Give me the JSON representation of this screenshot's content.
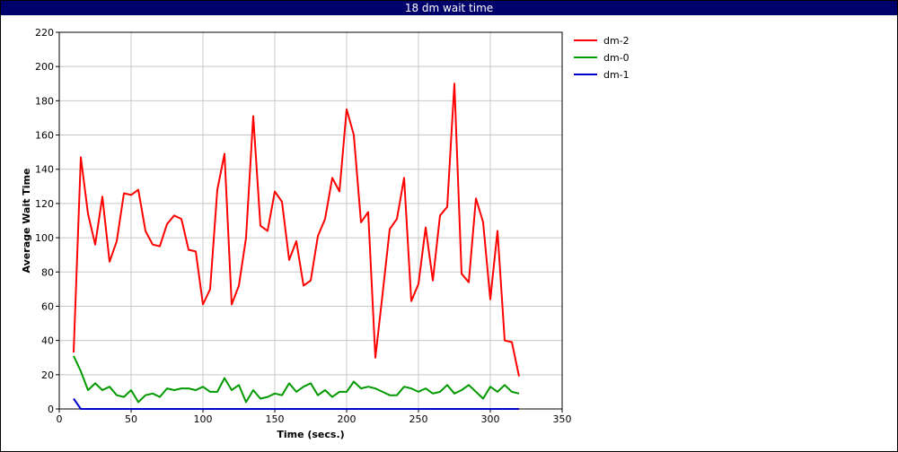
{
  "window": {
    "title": "18 dm wait time"
  },
  "chart_data": {
    "type": "line",
    "title": "18 dm wait time",
    "xlabel": "Time (secs.)",
    "ylabel": "Average Wait Time",
    "xlim": [
      0,
      350
    ],
    "ylim": [
      0,
      220
    ],
    "xticks": [
      0,
      50,
      100,
      150,
      200,
      250,
      300,
      350
    ],
    "yticks": [
      0,
      20,
      40,
      60,
      80,
      100,
      120,
      140,
      160,
      180,
      200,
      220
    ],
    "grid": true,
    "legend_position": "top-right",
    "series": [
      {
        "name": "dm-2",
        "color": "#ff0000",
        "points": [
          [
            10,
            33
          ],
          [
            15,
            147
          ],
          [
            20,
            114
          ],
          [
            25,
            96
          ],
          [
            30,
            124
          ],
          [
            35,
            86
          ],
          [
            40,
            98
          ],
          [
            45,
            126
          ],
          [
            50,
            125
          ],
          [
            55,
            128
          ],
          [
            60,
            104
          ],
          [
            65,
            96
          ],
          [
            70,
            95
          ],
          [
            75,
            108
          ],
          [
            80,
            113
          ],
          [
            85,
            111
          ],
          [
            90,
            93
          ],
          [
            95,
            92
          ],
          [
            100,
            61
          ],
          [
            105,
            70
          ],
          [
            110,
            128
          ],
          [
            115,
            149
          ],
          [
            120,
            61
          ],
          [
            125,
            72
          ],
          [
            130,
            100
          ],
          [
            135,
            171
          ],
          [
            140,
            107
          ],
          [
            145,
            104
          ],
          [
            150,
            127
          ],
          [
            155,
            121
          ],
          [
            160,
            87
          ],
          [
            165,
            98
          ],
          [
            170,
            72
          ],
          [
            175,
            75
          ],
          [
            180,
            101
          ],
          [
            185,
            111
          ],
          [
            190,
            135
          ],
          [
            195,
            127
          ],
          [
            200,
            175
          ],
          [
            205,
            160
          ],
          [
            210,
            109
          ],
          [
            215,
            115
          ],
          [
            220,
            30
          ],
          [
            225,
            67
          ],
          [
            230,
            105
          ],
          [
            235,
            111
          ],
          [
            240,
            135
          ],
          [
            245,
            63
          ],
          [
            250,
            73
          ],
          [
            255,
            106
          ],
          [
            260,
            75
          ],
          [
            265,
            113
          ],
          [
            270,
            118
          ],
          [
            275,
            190
          ],
          [
            280,
            79
          ],
          [
            285,
            74
          ],
          [
            290,
            123
          ],
          [
            295,
            109
          ],
          [
            300,
            64
          ],
          [
            305,
            104
          ],
          [
            310,
            40
          ],
          [
            315,
            39
          ],
          [
            320,
            19
          ]
        ]
      },
      {
        "name": "dm-0",
        "color": "#009900",
        "points": [
          [
            10,
            31
          ],
          [
            15,
            22
          ],
          [
            20,
            11
          ],
          [
            25,
            15
          ],
          [
            30,
            11
          ],
          [
            35,
            13
          ],
          [
            40,
            8
          ],
          [
            45,
            7
          ],
          [
            50,
            11
          ],
          [
            55,
            4
          ],
          [
            60,
            8
          ],
          [
            65,
            9
          ],
          [
            70,
            7
          ],
          [
            75,
            12
          ],
          [
            80,
            11
          ],
          [
            85,
            12
          ],
          [
            90,
            12
          ],
          [
            95,
            11
          ],
          [
            100,
            13
          ],
          [
            105,
            10
          ],
          [
            110,
            10
          ],
          [
            115,
            18
          ],
          [
            120,
            11
          ],
          [
            125,
            14
          ],
          [
            130,
            4
          ],
          [
            135,
            11
          ],
          [
            140,
            6
          ],
          [
            145,
            7
          ],
          [
            150,
            9
          ],
          [
            155,
            8
          ],
          [
            160,
            15
          ],
          [
            165,
            10
          ],
          [
            170,
            13
          ],
          [
            175,
            15
          ],
          [
            180,
            8
          ],
          [
            185,
            11
          ],
          [
            190,
            7
          ],
          [
            195,
            10
          ],
          [
            200,
            10
          ],
          [
            205,
            16
          ],
          [
            210,
            12
          ],
          [
            215,
            13
          ],
          [
            220,
            12
          ],
          [
            225,
            10
          ],
          [
            230,
            8
          ],
          [
            235,
            8
          ],
          [
            240,
            13
          ],
          [
            245,
            12
          ],
          [
            250,
            10
          ],
          [
            255,
            12
          ],
          [
            260,
            9
          ],
          [
            265,
            10
          ],
          [
            270,
            14
          ],
          [
            275,
            9
          ],
          [
            280,
            11
          ],
          [
            285,
            14
          ],
          [
            290,
            10
          ],
          [
            295,
            6
          ],
          [
            300,
            13
          ],
          [
            305,
            10
          ],
          [
            310,
            14
          ],
          [
            315,
            10
          ],
          [
            320,
            9
          ]
        ]
      },
      {
        "name": "dm-1",
        "color": "#0000cc",
        "points": [
          [
            10,
            6
          ],
          [
            15,
            0
          ],
          [
            20,
            0
          ],
          [
            320,
            0
          ]
        ]
      }
    ]
  }
}
